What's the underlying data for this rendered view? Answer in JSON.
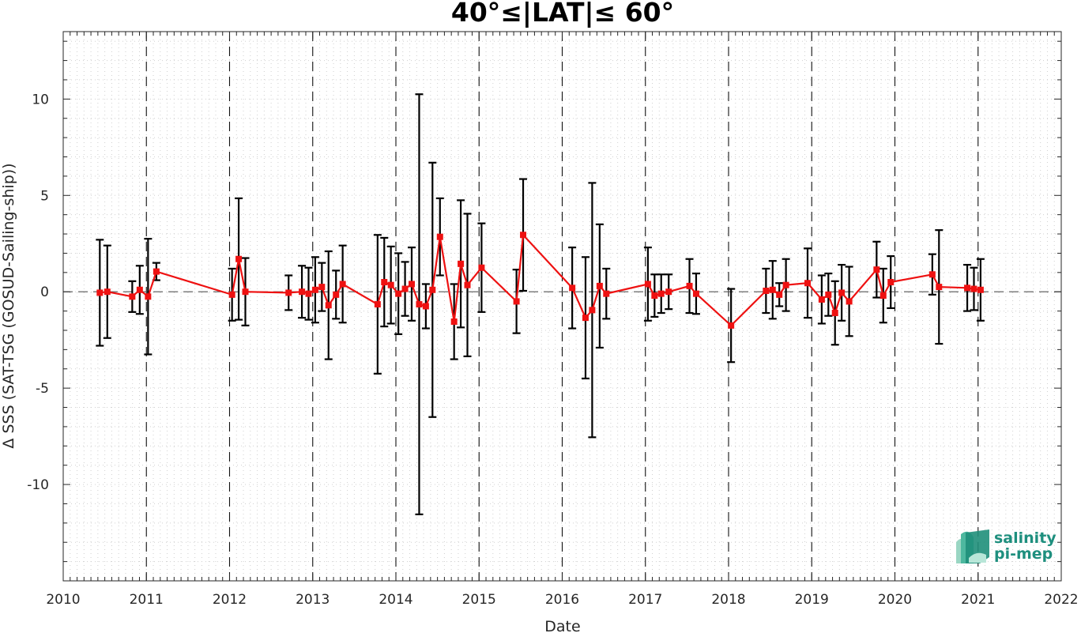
{
  "chart_data": {
    "type": "line",
    "title": "40°≤|LAT|≤ 60°",
    "xlabel": "Date",
    "ylabel": "Δ SSS (SAT-TSG (GOSUD-Sailing-ship))",
    "xlim": [
      2010,
      2022
    ],
    "ylim": [
      -15,
      13.5
    ],
    "x_ticks": [
      2010,
      2011,
      2012,
      2013,
      2014,
      2015,
      2016,
      2017,
      2018,
      2019,
      2020,
      2021,
      2022
    ],
    "y_ticks": [
      -10,
      -5,
      0,
      5,
      10
    ],
    "grid": "minor dotted",
    "reference_line_y": 0,
    "year_separators": [
      2011,
      2012,
      2013,
      2014,
      2015,
      2016,
      2017,
      2018,
      2019,
      2020,
      2021
    ],
    "colors": {
      "line": "#ee1111",
      "marker": "#ee1111",
      "errorbar": "#000000",
      "reference": "#555555"
    },
    "series": [
      {
        "x": [
          2010.44,
          2010.53,
          2010.83,
          2010.92,
          2011.02,
          2011.12,
          2012.03,
          2012.11,
          2012.19,
          2012.71,
          2012.87,
          2012.95,
          2013.03,
          2013.11,
          2013.19,
          2013.28,
          2013.36,
          2013.78,
          2013.86,
          2013.94,
          2014.03,
          2014.11,
          2014.19,
          2014.28,
          2014.36,
          2014.44,
          2014.53,
          2014.7,
          2014.78,
          2014.86,
          2015.03,
          2015.45,
          2015.53,
          2016.12,
          2016.28,
          2016.36,
          2016.45,
          2016.53,
          2017.03,
          2017.11,
          2017.19,
          2017.28,
          2017.53,
          2017.61,
          2018.03,
          2018.45,
          2018.53,
          2018.61,
          2018.69,
          2018.95,
          2019.12,
          2019.2,
          2019.28,
          2019.36,
          2019.45,
          2019.78,
          2019.86,
          2019.95,
          2020.45,
          2020.53,
          2020.87,
          2020.95,
          2021.03
        ],
        "y": [
          -0.05,
          0.0,
          -0.25,
          0.1,
          -0.25,
          1.05,
          -0.15,
          1.7,
          0.0,
          -0.05,
          0.0,
          -0.1,
          0.1,
          0.25,
          -0.7,
          -0.15,
          0.4,
          -0.65,
          0.5,
          0.35,
          -0.1,
          0.15,
          0.4,
          -0.65,
          -0.75,
          0.1,
          2.85,
          -1.55,
          1.45,
          0.35,
          1.25,
          -0.5,
          2.95,
          0.2,
          -1.35,
          -0.95,
          0.3,
          -0.1,
          0.4,
          -0.2,
          -0.1,
          0.0,
          0.3,
          -0.1,
          -1.75,
          0.05,
          0.1,
          -0.15,
          0.35,
          0.45,
          -0.4,
          -0.15,
          -1.1,
          -0.05,
          -0.5,
          1.15,
          -0.2,
          0.5,
          0.9,
          0.25,
          0.2,
          0.15,
          0.1
        ],
        "err": [
          2.75,
          2.4,
          0.8,
          1.25,
          3.0,
          0.45,
          1.35,
          3.15,
          1.75,
          0.9,
          1.35,
          1.35,
          1.7,
          1.25,
          2.8,
          1.25,
          2.0,
          3.6,
          2.3,
          2.0,
          2.1,
          1.4,
          1.9,
          10.9,
          1.15,
          6.6,
          2.0,
          1.95,
          3.3,
          3.7,
          2.3,
          1.65,
          2.9,
          2.1,
          3.15,
          6.6,
          3.2,
          1.3,
          1.9,
          1.1,
          1.0,
          0.9,
          1.4,
          1.05,
          1.9,
          1.15,
          1.5,
          0.6,
          1.35,
          1.8,
          1.25,
          1.1,
          1.65,
          1.45,
          1.8,
          1.45,
          1.4,
          1.35,
          1.05,
          2.95,
          1.2,
          1.1,
          1.6
        ]
      }
    ],
    "logo": {
      "line1": "salinity",
      "line2": "pi-mep"
    }
  }
}
